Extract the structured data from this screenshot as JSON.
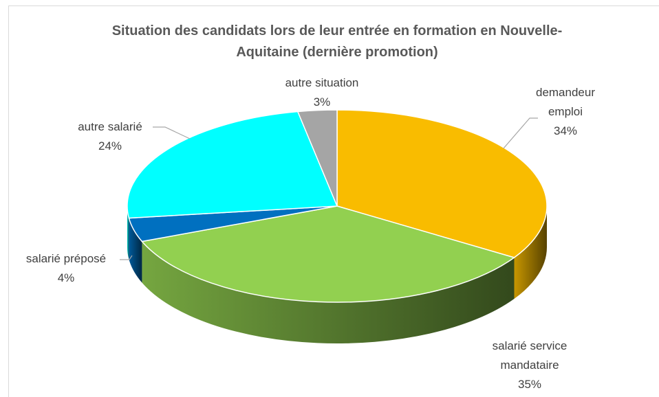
{
  "chart_data": {
    "type": "pie3d",
    "title": "Situation des candidats lors de leur entrée en formation en Nouvelle-Aquitaine (dernière promotion)",
    "categories": [
      "demandeur emploi",
      "salarié service mandataire",
      "salarié préposé",
      "autre salarié",
      "autre situation"
    ],
    "values": [
      34,
      35,
      4,
      24,
      3
    ],
    "value_labels": [
      "34%",
      "35%",
      "4%",
      "24%",
      "3%"
    ],
    "colors": [
      "#f9bc00",
      "#92d050",
      "#0070c0",
      "#00ffff",
      "#a5a5a5"
    ]
  }
}
